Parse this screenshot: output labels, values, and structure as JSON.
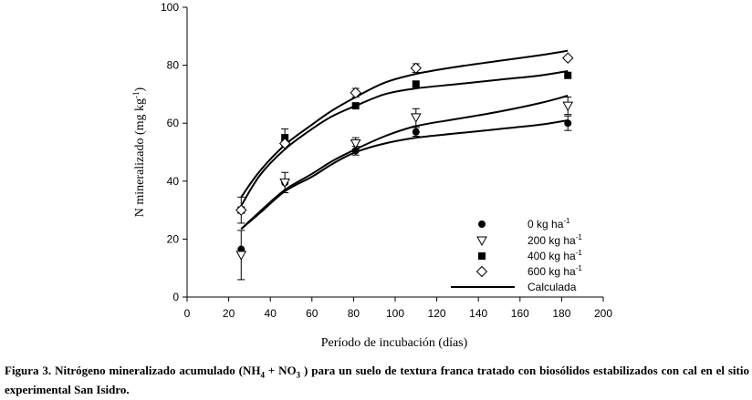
{
  "chart_data": {
    "type": "scatter",
    "xlabel": "Período de incubación (días)",
    "ylabel_main": "N mineralizado (mg kg",
    "ylabel_sup": "-1",
    "ylabel_end": ")",
    "xlim": [
      0,
      200
    ],
    "ylim": [
      0,
      100
    ],
    "xticks": [
      0,
      20,
      40,
      60,
      80,
      100,
      120,
      140,
      160,
      180,
      200
    ],
    "yticks": [
      0,
      20,
      40,
      60,
      80,
      100
    ],
    "grid": false,
    "legend_position": "bottom-right",
    "series": [
      {
        "name": "0 kg ha",
        "name_sup": "-1",
        "marker": "filled-circle",
        "x": [
          26,
          47,
          81,
          110,
          183
        ],
        "y": [
          16.5,
          39.5,
          50.5,
          57,
          60
        ],
        "err": [
          0,
          0,
          1.5,
          1.5,
          2.5
        ]
      },
      {
        "name": "200 kg ha",
        "name_sup": "-1",
        "marker": "open-triangle-down",
        "x": [
          26,
          47,
          81,
          110,
          183
        ],
        "y": [
          14.5,
          39.5,
          53,
          62,
          66
        ],
        "err": [
          8.5,
          3.5,
          2,
          3,
          3
        ]
      },
      {
        "name": "400 kg ha",
        "name_sup": "-1",
        "marker": "filled-square",
        "x": [
          26,
          47,
          81,
          110,
          183
        ],
        "y": [
          30,
          55,
          66,
          73.5,
          76.5
        ],
        "err": [
          0,
          3,
          0,
          0,
          0
        ]
      },
      {
        "name": "600 kg ha",
        "name_sup": "-1",
        "marker": "open-diamond",
        "x": [
          26,
          47,
          81,
          110,
          183
        ],
        "y": [
          30,
          53,
          70.5,
          79,
          82.5
        ],
        "err": [
          4.5,
          0,
          1.5,
          1.5,
          0
        ]
      }
    ],
    "fitted": {
      "name": "Calculada",
      "curves": [
        {
          "x": [
            26,
            35,
            47,
            60,
            70,
            81,
            95,
            110,
            130,
            150,
            170,
            183
          ],
          "y": [
            23.5,
            29,
            36.5,
            41.5,
            46,
            50,
            53,
            55,
            56.5,
            58,
            59.5,
            61
          ]
        },
        {
          "x": [
            26,
            35,
            47,
            60,
            70,
            81,
            95,
            110,
            130,
            150,
            170,
            183
          ],
          "y": [
            23.5,
            29.5,
            37,
            42.5,
            47,
            51,
            55.5,
            59,
            61.5,
            64,
            67,
            69.5
          ]
        },
        {
          "x": [
            26,
            35,
            47,
            60,
            70,
            81,
            95,
            110,
            130,
            150,
            170,
            183
          ],
          "y": [
            31.5,
            42,
            51,
            58,
            62.5,
            66,
            70,
            72,
            73.5,
            75,
            76.5,
            78
          ]
        },
        {
          "x": [
            26,
            35,
            47,
            60,
            70,
            81,
            95,
            110,
            130,
            150,
            170,
            183
          ],
          "y": [
            34.5,
            43.5,
            52.5,
            59.5,
            64.5,
            69,
            74,
            77,
            79.5,
            81.5,
            83.5,
            85
          ]
        }
      ]
    }
  },
  "caption": {
    "prefix": "Figura 3. Nitrógeno mineralizado acumulado (NH",
    "sub1": "4",
    "mid": " + NO",
    "sub2": "3",
    "suffix": " ) para un suelo de textura franca tratado con biosólidos estabilizados con cal en el sitio experimental San Isidro."
  }
}
